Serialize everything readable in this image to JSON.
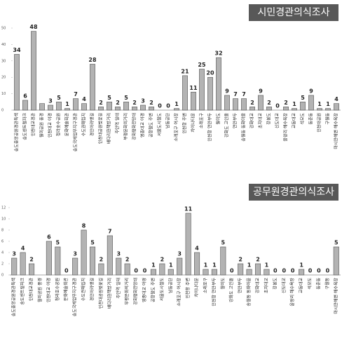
{
  "chart_data": [
    {
      "type": "bar",
      "title": "시민경관의식조사",
      "color": "#b3b3b3",
      "categories": [
        "송도중앙공원경관특색",
        "송도센트럴파크",
        "인천대교경관",
        "월미공원 풍경",
        "인천대교 야경",
        "청라호수공원",
        "문화예술회관",
        "송도국제업무지구경관",
        "수도권매립지",
        "경인아라뱃길",
        "인천대공원벚꽃길",
        "배다리헌책방거리",
        "주안역 일대",
        "부평문화의거리",
        "강화평화전망대",
        "영종대교 야경",
        "공항철도 주변",
        "서울도시철도",
        "남동공단",
        "소래포구 어시장",
        "인천항 주변",
        "차이나타운",
        "소래포구",
        "인천항 연안부두",
        "월미도",
        "강화도 고인돌",
        "연안부두",
        "송월동 동화마을",
        "강화대교",
        "초지대교",
        "장봉도",
        "신도대교",
        "을왕리 해수욕장",
        "교동대교",
        "석모도",
        "동춘동",
        "인천대공원",
        "구월동",
        "마시안해변 해수욕장"
      ],
      "values": [
        34,
        6,
        48,
        4,
        3,
        5,
        1,
        7,
        4,
        28,
        2,
        5,
        2,
        5,
        2,
        3,
        2,
        0,
        0,
        1,
        21,
        11,
        25,
        20,
        32,
        9,
        7,
        7,
        2,
        9,
        2,
        0,
        2,
        1,
        5,
        9,
        1,
        1,
        4
      ],
      "value_labels": [
        "34",
        "6",
        "48",
        null,
        "3",
        "5",
        "1",
        "7",
        "4",
        "28",
        "2",
        "5",
        "2",
        "5",
        "2",
        "3",
        "2",
        "0",
        "0",
        "1",
        "21",
        "11",
        "25",
        "20",
        "32",
        "9",
        "7",
        "7",
        "2",
        "9",
        "2",
        "0",
        "2",
        "1",
        "5",
        "9",
        "1",
        "1",
        "4"
      ],
      "ylim": [
        0,
        50
      ],
      "yticks": [
        0,
        10,
        20,
        30,
        40,
        50
      ]
    },
    {
      "type": "bar",
      "title": "공무원경관의식조사",
      "color": "#b3b3b3",
      "categories": [
        "송도중앙공원경관특색",
        "송도센트럴파크",
        "인천대교경관",
        "월미공원 풍경",
        "인천대교 야경",
        "청라호수공원",
        "문화예술회관",
        "송도국제업무지구경관",
        "수도권매립지",
        "경인아라뱃길",
        "인천대공원벚꽃길",
        "배다리헌책방거리",
        "주안역 일대",
        "부평문화의거리",
        "강화평화전망대",
        "영종대교 야경",
        "공항철도 주변",
        "서울도시철도",
        "남동공단",
        "소래포구 어시장",
        "인천항 주변",
        "차이나타운",
        "소래포구",
        "인천항 연안부두",
        "월미도",
        "강화도 고인돌",
        "연안부두",
        "송월동 동화마을",
        "강화대교",
        "초지대교",
        "장봉도",
        "신도대교",
        "을왕리 해수욕장",
        "교동대교",
        "석모도",
        "동춘동",
        "구월동",
        "마시안해변 해수욕장"
      ],
      "values": [
        3,
        4,
        2,
        0,
        6,
        5,
        0,
        3,
        8,
        5,
        2,
        7,
        3,
        2,
        0,
        0,
        1,
        2,
        1,
        3,
        11,
        4,
        1,
        1,
        5,
        0,
        2,
        1,
        2,
        1,
        0,
        0,
        0,
        1,
        0,
        0,
        0,
        5
      ],
      "value_labels": [
        "3",
        "4",
        "2",
        null,
        "6",
        "5",
        "0",
        "3",
        "8",
        "5",
        "2",
        "7",
        "3",
        "2",
        "0",
        "0",
        "1",
        "2",
        "1",
        "3",
        "11",
        "4",
        "1",
        "1",
        "5",
        "0",
        "2",
        "1",
        "2",
        "1",
        "0",
        "0",
        "0",
        "1",
        "0",
        "0",
        "0",
        "5"
      ],
      "ylim": [
        0,
        12
      ],
      "yticks": [
        0,
        2,
        4,
        6,
        8,
        10,
        12
      ]
    }
  ]
}
